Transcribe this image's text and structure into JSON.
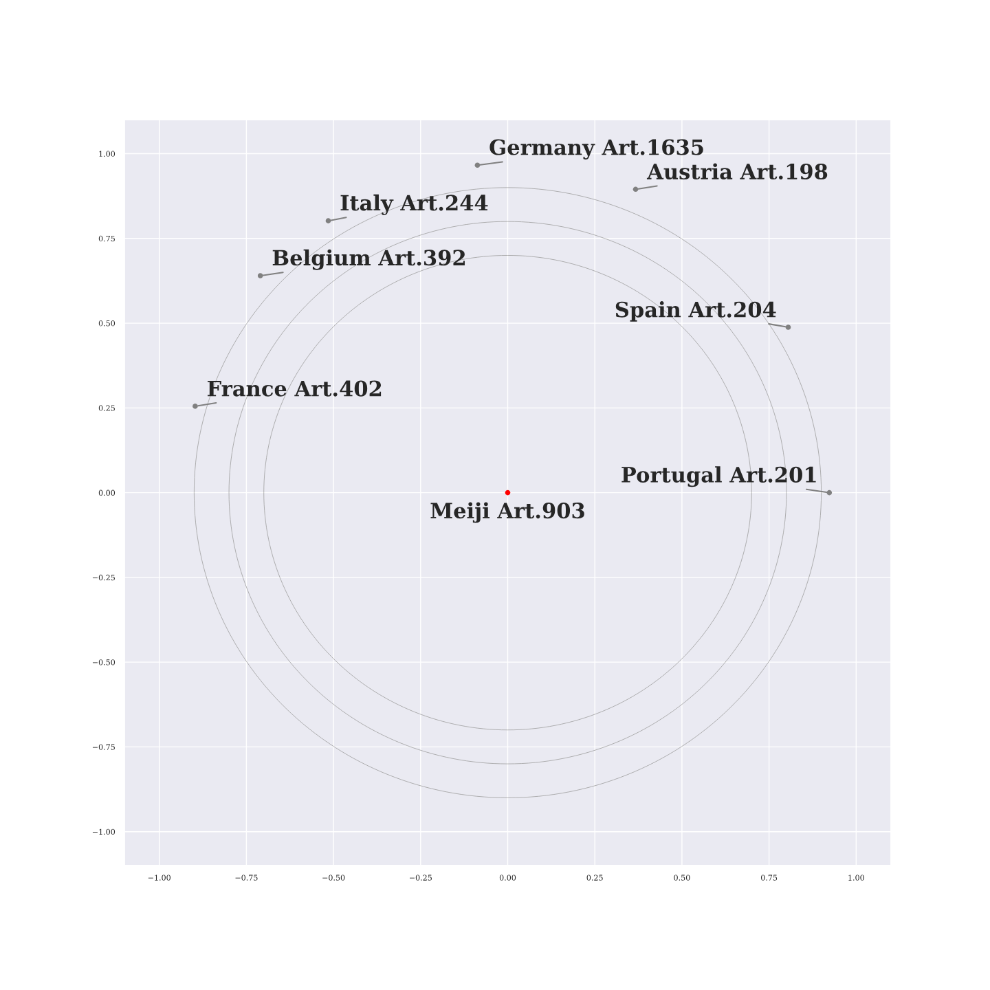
{
  "chart_data": {
    "type": "scatter",
    "grid": true,
    "marker": "circle",
    "xlim": [
      -1.1,
      1.1
    ],
    "ylim": [
      -1.1,
      1.1
    ],
    "xticks": [
      {
        "value": -1,
        "label": "−1.00"
      },
      {
        "value": -0.75,
        "label": "−0.75"
      },
      {
        "value": -0.5,
        "label": "−0.50"
      },
      {
        "value": -0.25,
        "label": "−0.25"
      },
      {
        "value": 0,
        "label": "0.00"
      },
      {
        "value": 0.25,
        "label": "0.25"
      },
      {
        "value": 0.5,
        "label": "0.50"
      },
      {
        "value": 0.75,
        "label": "0.75"
      },
      {
        "value": 1,
        "label": "1.00"
      }
    ],
    "yticks": [
      {
        "value": -1,
        "label": "−1.00"
      },
      {
        "value": -0.75,
        "label": "−0.75"
      },
      {
        "value": -0.5,
        "label": "−0.50"
      },
      {
        "value": -0.25,
        "label": "−0.25"
      },
      {
        "value": 0,
        "label": "0.00"
      },
      {
        "value": 0.25,
        "label": "0.25"
      },
      {
        "value": 0.5,
        "label": "0.50"
      },
      {
        "value": 0.75,
        "label": "0.75"
      },
      {
        "value": 1,
        "label": "1.00"
      }
    ],
    "series": [
      {
        "color": "#808080",
        "x": [
          -0.087,
          0.367,
          -0.515,
          -0.71,
          0.805,
          -0.897,
          0.923
        ],
        "values": [
          0.966,
          0.895,
          0.802,
          0.64,
          0.488,
          0.255,
          0
        ]
      },
      {
        "color": "#ff0000",
        "x": [
          0
        ],
        "values": [
          0
        ]
      }
    ],
    "annotations": [
      {
        "text": "Germany Art.1635",
        "x": -0.087,
        "y": 0.966
      },
      {
        "text": "Austria Art.198",
        "x": 0.367,
        "y": 0.895
      },
      {
        "text": "Italy Art.244",
        "x": -0.515,
        "y": 0.802
      },
      {
        "text": "Belgium Art.392",
        "x": -0.71,
        "y": 0.64
      },
      {
        "text": "Spain Art.204",
        "x": 0.805,
        "y": 0.488
      },
      {
        "text": "France Art.402",
        "x": -0.897,
        "y": 0.255
      },
      {
        "text": "Portugal Art.201",
        "x": 0.923,
        "y": 0
      },
      {
        "text": "Meiji Art.903",
        "x": 0,
        "y": 0
      }
    ]
  }
}
